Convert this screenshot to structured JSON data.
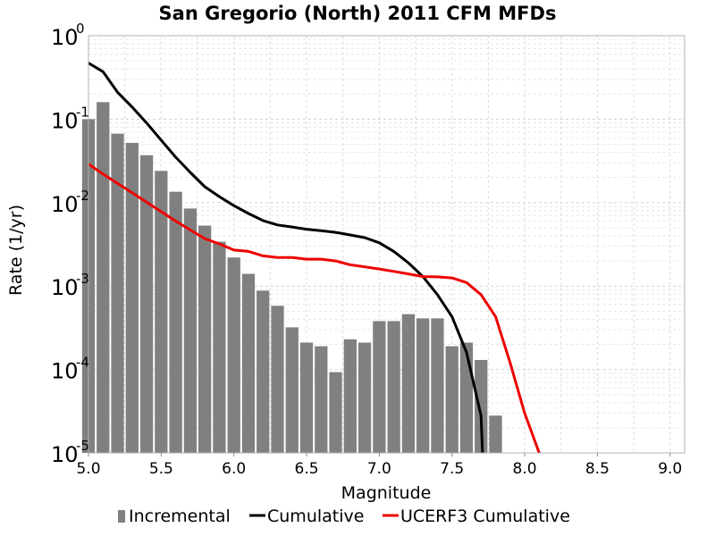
{
  "chart_data": {
    "type": "bar+line",
    "title": "San Gregorio (North) 2011 CFM MFDs",
    "xlabel": "Magnitude",
    "ylabel": "Rate (1/yr)",
    "xlim": [
      5.0,
      9.1
    ],
    "ylim": [
      1e-05,
      1
    ],
    "yscale": "log",
    "grid": true,
    "legend_position": "bottom",
    "x_ticks": [
      "5.0",
      "5.5",
      "6.0",
      "6.5",
      "7.0",
      "7.5",
      "8.0",
      "8.5",
      "9.0"
    ],
    "y_ticks": [
      {
        "base": "10",
        "exp": "0"
      },
      {
        "base": "10",
        "exp": "-1"
      },
      {
        "base": "10",
        "exp": "-2"
      },
      {
        "base": "10",
        "exp": "-3"
      },
      {
        "base": "10",
        "exp": "-4"
      },
      {
        "base": "10",
        "exp": "-5"
      }
    ],
    "series": [
      {
        "name": "Incremental",
        "kind": "bar",
        "color": "#808080",
        "x": [
          5.0,
          5.1,
          5.2,
          5.3,
          5.4,
          5.5,
          5.6,
          5.7,
          5.8,
          5.9,
          6.0,
          6.1,
          6.2,
          6.3,
          6.4,
          6.5,
          6.6,
          6.7,
          6.8,
          6.9,
          7.0,
          7.1,
          7.2,
          7.3,
          7.4,
          7.5,
          7.6,
          7.7,
          7.8
        ],
        "y": [
          0.1,
          0.16,
          0.067,
          0.052,
          0.037,
          0.024,
          0.0135,
          0.0085,
          0.0053,
          0.0034,
          0.0022,
          0.0014,
          0.00088,
          0.00058,
          0.00032,
          0.00021,
          0.00019,
          9.3e-05,
          0.00023,
          0.00021,
          0.00038,
          0.00038,
          0.00046,
          0.00041,
          0.00041,
          0.00019,
          0.00021,
          0.00013,
          2.8e-05
        ]
      },
      {
        "name": "Cumulative",
        "kind": "line",
        "color": "#000000",
        "x": [
          5.0,
          5.1,
          5.2,
          5.3,
          5.4,
          5.5,
          5.6,
          5.7,
          5.8,
          5.9,
          6.0,
          6.1,
          6.2,
          6.3,
          6.4,
          6.5,
          6.6,
          6.7,
          6.8,
          6.9,
          7.0,
          7.1,
          7.2,
          7.3,
          7.4,
          7.5,
          7.6,
          7.7,
          7.71
        ],
        "y": [
          0.47,
          0.37,
          0.21,
          0.14,
          0.09,
          0.056,
          0.035,
          0.023,
          0.0155,
          0.0118,
          0.0092,
          0.0074,
          0.0061,
          0.0054,
          0.0051,
          0.0048,
          0.0046,
          0.0044,
          0.0041,
          0.0038,
          0.0033,
          0.0026,
          0.0019,
          0.0013,
          0.00079,
          0.00043,
          0.00016,
          2.8e-05,
          1e-05
        ]
      },
      {
        "name": "UCERF3 Cumulative",
        "kind": "line",
        "color": "#ee0000",
        "x": [
          5.0,
          5.1,
          5.2,
          5.3,
          5.4,
          5.5,
          5.6,
          5.7,
          5.8,
          5.9,
          6.0,
          6.1,
          6.2,
          6.3,
          6.4,
          6.5,
          6.6,
          6.7,
          6.8,
          6.9,
          7.0,
          7.1,
          7.2,
          7.3,
          7.4,
          7.5,
          7.6,
          7.7,
          7.8,
          7.9,
          8.0,
          8.1
        ],
        "y": [
          0.029,
          0.022,
          0.017,
          0.0131,
          0.0101,
          0.0078,
          0.006,
          0.0047,
          0.0037,
          0.0032,
          0.0027,
          0.0026,
          0.0023,
          0.0022,
          0.0022,
          0.0021,
          0.0021,
          0.002,
          0.0018,
          0.0017,
          0.0016,
          0.0015,
          0.0014,
          0.0013,
          0.00129,
          0.00125,
          0.0011,
          0.00079,
          0.00043,
          0.00012,
          3e-05,
          1e-05
        ]
      }
    ]
  }
}
